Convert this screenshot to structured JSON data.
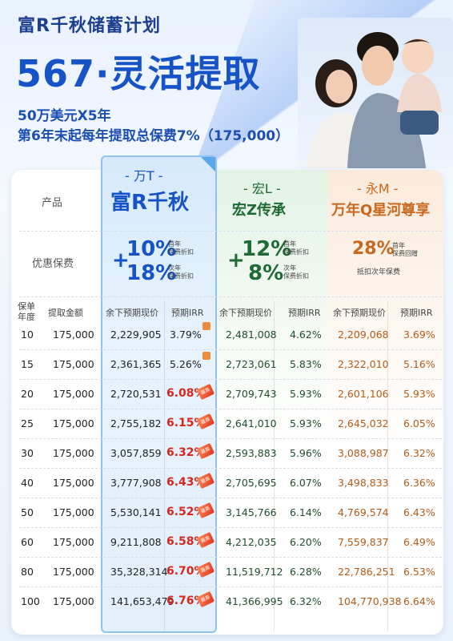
{
  "header": {
    "subtitle": "富R千秋储蓄计划",
    "title": "567·灵活提取",
    "desc_line1": "50万美元X5年",
    "desc_line2": "第6年末起每年提取总保费7%（175,000）"
  },
  "colors": {
    "main_blue": "#1553c6",
    "green": "#1f6b34",
    "orange": "#c8681f",
    "highlight_red": "#d7271d"
  },
  "table": {
    "row_label_product": "产品",
    "row_label_premium": "优惠保费",
    "col_policy_year": "保单年度",
    "col_withdraw": "提取金额",
    "products": [
      {
        "brand": "- 万T -",
        "name": "富R千秋",
        "premium_lines": [
          {
            "sign": "+",
            "pct": "10%",
            "note1": "首年",
            "note2": "保费折扣"
          },
          {
            "sign": "+",
            "pct": "18%",
            "note1": "次年",
            "note2": "保费折扣"
          }
        ],
        "cols": [
          "余下预期现价",
          "预期IRR"
        ]
      },
      {
        "brand": "- 宏L -",
        "name": "宏Z传承",
        "premium_lines": [
          {
            "sign": "+",
            "pct": "12%",
            "note1": "首年",
            "note2": "保费折扣"
          },
          {
            "sign": "",
            "pct": "8%",
            "note1": "次年",
            "note2": "保费折扣"
          }
        ],
        "cols": [
          "余下预期现价",
          "预期IRR"
        ]
      },
      {
        "brand": "- 永M -",
        "name": "万年Q星河尊享",
        "premium_lines": [
          {
            "sign": "",
            "pct": "28%",
            "note1": "首年",
            "note2": "保费回赠"
          }
        ],
        "premium_extra": "抵扣次年保费",
        "cols": [
          "余下预期现价",
          "预期IRR"
        ]
      }
    ],
    "badge_text": "最高",
    "rows": [
      {
        "year": "10",
        "withdraw": "175,000",
        "a_val": "2,229,905",
        "a_irr": "3.79%",
        "a_hl": false,
        "b_val": "2,481,008",
        "b_irr": "4.62%",
        "c_val": "2,209,068",
        "c_irr": "3.69%"
      },
      {
        "year": "15",
        "withdraw": "175,000",
        "a_val": "2,361,365",
        "a_irr": "5.26%",
        "a_hl": false,
        "b_val": "2,723,061",
        "b_irr": "5.83%",
        "c_val": "2,322,010",
        "c_irr": "5.16%"
      },
      {
        "year": "20",
        "withdraw": "175,000",
        "a_val": "2,720,531",
        "a_irr": "6.08%",
        "a_hl": true,
        "b_val": "2,709,743",
        "b_irr": "5.93%",
        "c_val": "2,601,106",
        "c_irr": "5.93%"
      },
      {
        "year": "25",
        "withdraw": "175,000",
        "a_val": "2,755,182",
        "a_irr": "6.15%",
        "a_hl": true,
        "b_val": "2,641,010",
        "b_irr": "5.93%",
        "c_val": "2,645,032",
        "c_irr": "6.05%"
      },
      {
        "year": "30",
        "withdraw": "175,000",
        "a_val": "3,057,859",
        "a_irr": "6.32%",
        "a_hl": true,
        "b_val": "2,593,883",
        "b_irr": "5.96%",
        "c_val": "3,088,987",
        "c_irr": "6.32%"
      },
      {
        "year": "40",
        "withdraw": "175,000",
        "a_val": "3,777,908",
        "a_irr": "6.43%",
        "a_hl": true,
        "b_val": "2,705,695",
        "b_irr": "6.07%",
        "c_val": "3,498,833",
        "c_irr": "6.36%"
      },
      {
        "year": "50",
        "withdraw": "175,000",
        "a_val": "5,530,141",
        "a_irr": "6.52%",
        "a_hl": true,
        "b_val": "3,145,766",
        "b_irr": "6.14%",
        "c_val": "4,769,574",
        "c_irr": "6.43%"
      },
      {
        "year": "60",
        "withdraw": "175,000",
        "a_val": "9,211,808",
        "a_irr": "6.58%",
        "a_hl": true,
        "b_val": "4,212,035",
        "b_irr": "6.20%",
        "c_val": "7,559,837",
        "c_irr": "6.49%"
      },
      {
        "year": "80",
        "withdraw": "175,000",
        "a_val": "35,328,314",
        "a_irr": "6.70%",
        "a_hl": true,
        "b_val": "11,519,712",
        "b_irr": "6.28%",
        "c_val": "22,786,251",
        "c_irr": "6.53%"
      },
      {
        "year": "100",
        "withdraw": "175,000",
        "a_val": "141,653,479",
        "a_irr": "6.76%",
        "a_hl": true,
        "b_val": "41,366,995",
        "b_irr": "6.32%",
        "c_val": "104,770,938",
        "c_irr": "6.64%"
      }
    ]
  }
}
